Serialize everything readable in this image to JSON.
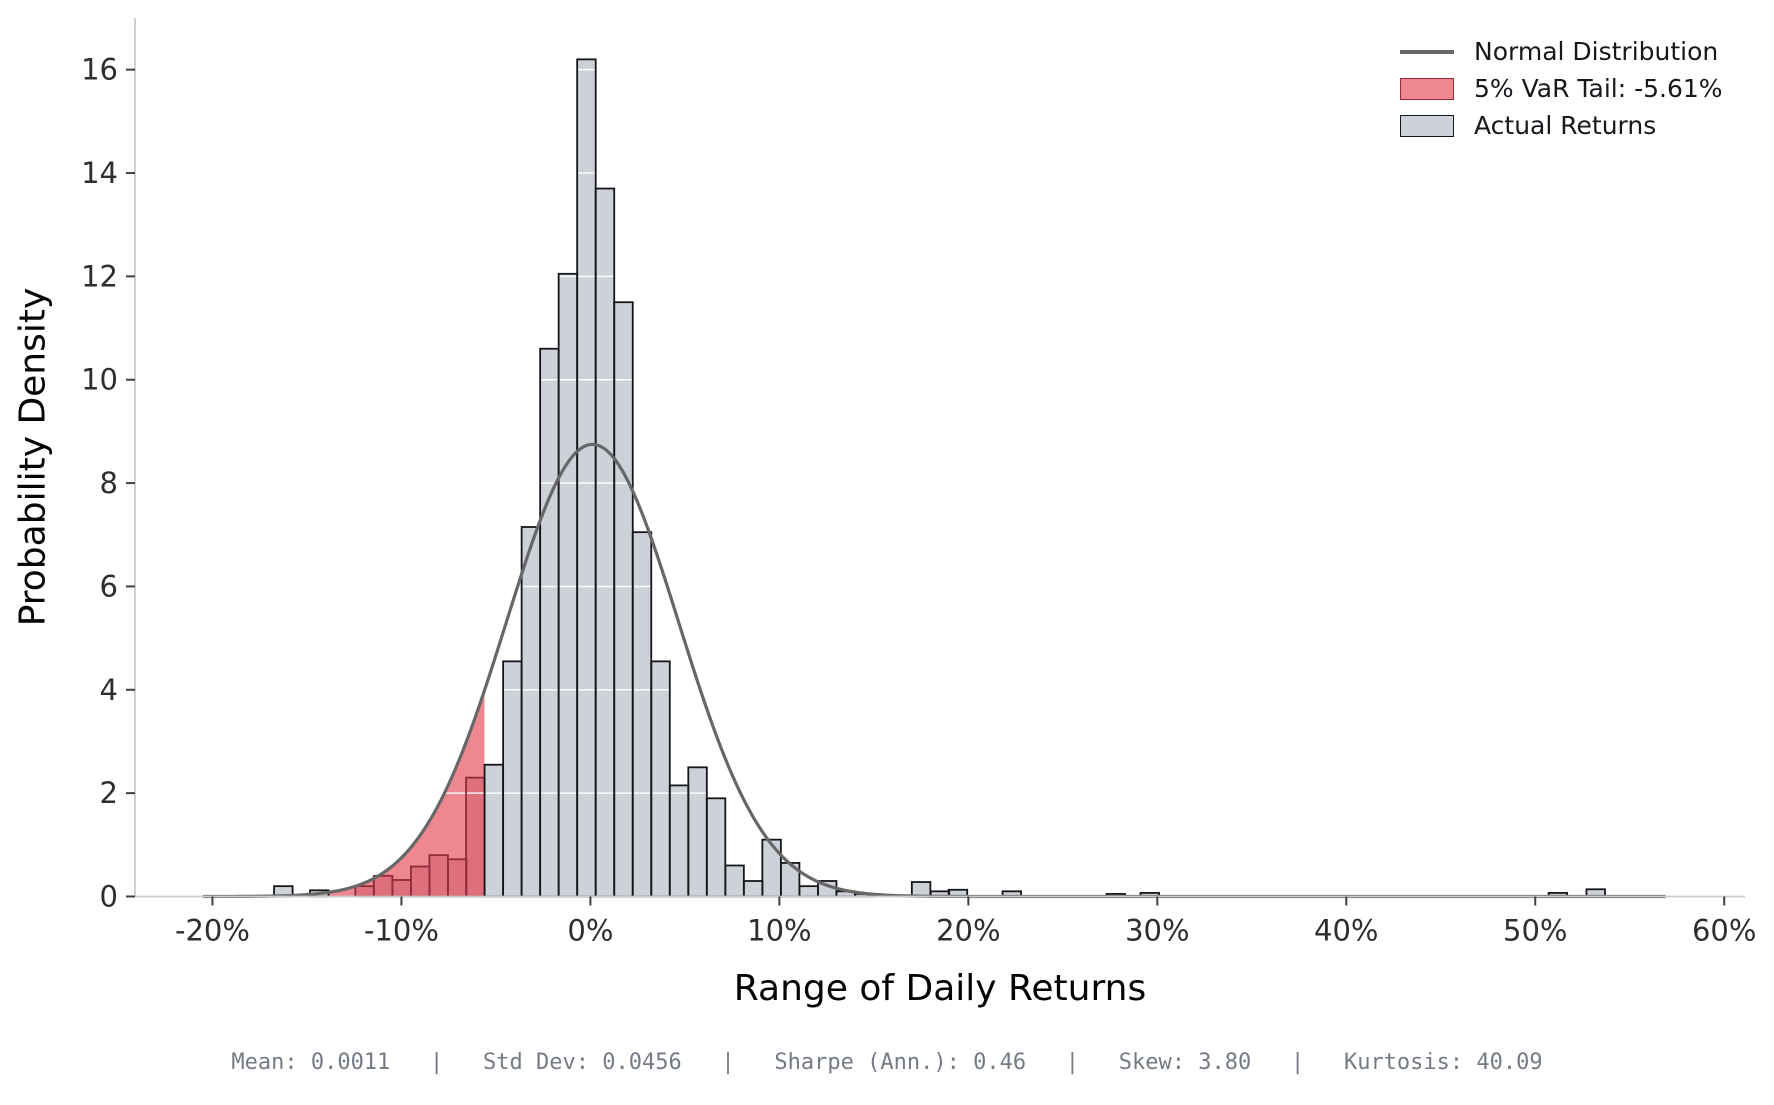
{
  "chart_data": {
    "type": "bar",
    "subtype": "histogram-with-normal-overlay",
    "xlabel": "Range of Daily Returns",
    "ylabel": "Probability Density",
    "xlim": [
      -24.1,
      61.1
    ],
    "ylim": [
      0,
      17
    ],
    "grid": "horizontal",
    "legend_position": "top-right",
    "x_ticks": [
      {
        "value": -20,
        "label": "-20%"
      },
      {
        "value": -10,
        "label": "-10%"
      },
      {
        "value": 0,
        "label": "0%"
      },
      {
        "value": 10,
        "label": "10%"
      },
      {
        "value": 20,
        "label": "20%"
      },
      {
        "value": 30,
        "label": "30%"
      },
      {
        "value": 40,
        "label": "40%"
      },
      {
        "value": 50,
        "label": "50%"
      },
      {
        "value": 60,
        "label": "60%"
      }
    ],
    "y_ticks": [
      {
        "value": 0,
        "label": "0"
      },
      {
        "value": 2,
        "label": "2"
      },
      {
        "value": 4,
        "label": "4"
      },
      {
        "value": 6,
        "label": "6"
      },
      {
        "value": 8,
        "label": "8"
      },
      {
        "value": 10,
        "label": "10"
      },
      {
        "value": 12,
        "label": "12"
      },
      {
        "value": 14,
        "label": "14"
      },
      {
        "value": 16,
        "label": "16"
      }
    ],
    "bin_width_pct": 0.98,
    "bins": [
      {
        "center": -16.25,
        "height": 0.2,
        "tail": false
      },
      {
        "center": -14.35,
        "height": 0.12,
        "tail": false
      },
      {
        "center": -11.95,
        "height": 0.2,
        "tail": true
      },
      {
        "center": -10.97,
        "height": 0.4,
        "tail": true
      },
      {
        "center": -9.99,
        "height": 0.32,
        "tail": true
      },
      {
        "center": -9.01,
        "height": 0.58,
        "tail": true
      },
      {
        "center": -8.03,
        "height": 0.8,
        "tail": true
      },
      {
        "center": -7.05,
        "height": 0.72,
        "tail": true
      },
      {
        "center": -6.09,
        "height": 2.3,
        "tail": true
      },
      {
        "center": -5.11,
        "height": 2.55,
        "tail": false
      },
      {
        "center": -4.13,
        "height": 4.55,
        "tail": false
      },
      {
        "center": -3.15,
        "height": 7.15,
        "tail": false
      },
      {
        "center": -2.17,
        "height": 10.6,
        "tail": false
      },
      {
        "center": -1.19,
        "height": 12.05,
        "tail": false
      },
      {
        "center": -0.21,
        "height": 16.2,
        "tail": false
      },
      {
        "center": 0.77,
        "height": 13.7,
        "tail": false
      },
      {
        "center": 1.75,
        "height": 11.5,
        "tail": false
      },
      {
        "center": 2.73,
        "height": 7.05,
        "tail": false
      },
      {
        "center": 3.71,
        "height": 4.55,
        "tail": false
      },
      {
        "center": 4.69,
        "height": 2.15,
        "tail": false
      },
      {
        "center": 5.67,
        "height": 2.5,
        "tail": false
      },
      {
        "center": 6.65,
        "height": 1.9,
        "tail": false
      },
      {
        "center": 7.63,
        "height": 0.6,
        "tail": false
      },
      {
        "center": 8.61,
        "height": 0.3,
        "tail": false
      },
      {
        "center": 9.59,
        "height": 1.1,
        "tail": false
      },
      {
        "center": 10.57,
        "height": 0.65,
        "tail": false
      },
      {
        "center": 11.55,
        "height": 0.2,
        "tail": false
      },
      {
        "center": 12.53,
        "height": 0.3,
        "tail": false
      },
      {
        "center": 13.51,
        "height": 0.1,
        "tail": false
      },
      {
        "center": 14.49,
        "height": 0.05,
        "tail": false
      },
      {
        "center": 17.5,
        "height": 0.28,
        "tail": false
      },
      {
        "center": 18.5,
        "height": 0.1,
        "tail": false
      },
      {
        "center": 19.45,
        "height": 0.13,
        "tail": false
      },
      {
        "center": 22.3,
        "height": 0.1,
        "tail": false
      },
      {
        "center": 27.8,
        "height": 0.05,
        "tail": false
      },
      {
        "center": 29.6,
        "height": 0.07,
        "tail": false
      },
      {
        "center": 51.2,
        "height": 0.07,
        "tail": false
      },
      {
        "center": 53.2,
        "height": 0.14,
        "tail": false
      }
    ],
    "normal_curve": {
      "mean_pct": 0.11,
      "std_pct": 4.56,
      "peak_density": 8.75,
      "x_start_pct": -20.5,
      "x_end_pct": 57.0
    },
    "var_threshold_pct": -5.61,
    "legend": [
      {
        "label": "Normal Distribution",
        "swatch": "line"
      },
      {
        "label": "5% VaR Tail: -5.61%",
        "swatch": "red-patch"
      },
      {
        "label": "Actual Returns",
        "swatch": "gray-patch"
      }
    ]
  },
  "footer": {
    "text": "Mean: 0.0011   |   Std Dev: 0.0456   |   Sharpe (Ann.): 0.46   |   Skew: 3.80   |   Kurtosis: 40.09",
    "stats": [
      {
        "label": "Mean",
        "value": "0.0011"
      },
      {
        "label": "Std Dev",
        "value": "0.0456"
      },
      {
        "label": "Sharpe (Ann.)",
        "value": "0.46"
      },
      {
        "label": "Skew",
        "value": "3.80"
      },
      {
        "label": "Kurtosis",
        "value": "40.09"
      }
    ]
  },
  "colors": {
    "background": "#ffffff",
    "grid_under": "#efefef",
    "grid_over": "rgba(255,255,255,0.9)",
    "tail_fill": "#ee8790",
    "tail_bar_fill": "rgba(170,30,52,0.22)",
    "tail_bar_edge": "#8e2c3a",
    "bar_fill": "#cdd2d8",
    "bar_edge": "#16161a",
    "curve": "#676767",
    "spine": "#c9cdd1",
    "tick": "#3f3f3f",
    "tick_text": "#2e2e2e",
    "axis_label": "#050505",
    "footer_text": "#747b84"
  }
}
